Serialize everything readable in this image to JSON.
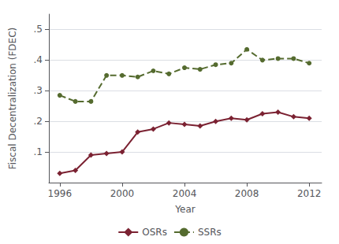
{
  "chart_data": {
    "type": "line",
    "x": [
      1996,
      1997,
      1998,
      1999,
      2000,
      2001,
      2002,
      2003,
      2004,
      2005,
      2006,
      2007,
      2008,
      2009,
      2010,
      2011,
      2012
    ],
    "series": [
      {
        "name": "OSRs",
        "color": "#7B2232",
        "marker": "diamond",
        "line_style": "solid",
        "values": [
          0.03,
          0.04,
          0.09,
          0.095,
          0.1,
          0.165,
          0.175,
          0.195,
          0.19,
          0.185,
          0.2,
          0.21,
          0.205,
          0.225,
          0.23,
          0.215,
          0.21
        ]
      },
      {
        "name": "SSRs",
        "color": "#556B2F",
        "marker": "circle",
        "line_style": "dashed",
        "values": [
          0.285,
          0.265,
          0.265,
          0.35,
          0.35,
          0.345,
          0.365,
          0.355,
          0.375,
          0.37,
          0.385,
          0.39,
          0.435,
          0.4,
          0.405,
          0.405,
          0.39
        ]
      }
    ],
    "xlabel": "Year",
    "ylabel": "Fiscal Decentralization (FDEC)",
    "xlim": [
      1995.3,
      2012.8
    ],
    "xticks": [
      1996,
      2000,
      2004,
      2008,
      2012
    ],
    "ylim": [
      0.0,
      0.55
    ],
    "yticks": [
      {
        "value": 0.1,
        "label": ".1"
      },
      {
        "value": 0.2,
        "label": ".2"
      },
      {
        "value": 0.3,
        "label": ".3"
      },
      {
        "value": 0.4,
        "label": ".4"
      },
      {
        "value": 0.5,
        "label": ".5"
      }
    ],
    "grid": true,
    "legend": "bottom"
  }
}
